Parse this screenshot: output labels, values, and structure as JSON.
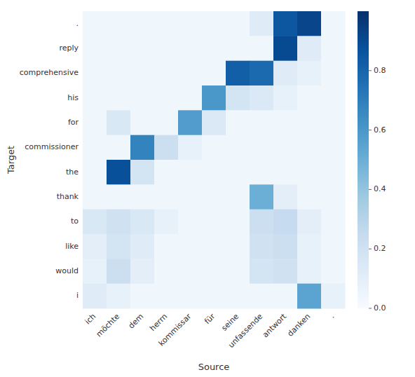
{
  "chart_data": {
    "type": "heatmap",
    "xlabel": "Source",
    "ylabel": "Target",
    "x_categories": [
      "ich",
      "möchte",
      "dem",
      "herrn",
      "kommissar",
      "für",
      "seine",
      "unfassende",
      "antwort",
      "danken",
      "."
    ],
    "y_categories": [
      ".",
      "reply",
      "comprehensive",
      "his",
      "for",
      "commissioner",
      "the",
      "thank",
      "to",
      "like",
      "would",
      "i"
    ],
    "values": [
      [
        0.04,
        0.04,
        0.04,
        0.04,
        0.04,
        0.04,
        0.04,
        0.12,
        0.85,
        0.92,
        0.04
      ],
      [
        0.04,
        0.04,
        0.04,
        0.04,
        0.04,
        0.04,
        0.04,
        0.04,
        0.9,
        0.12,
        0.04
      ],
      [
        0.04,
        0.04,
        0.04,
        0.04,
        0.04,
        0.04,
        0.82,
        0.78,
        0.12,
        0.08,
        0.04
      ],
      [
        0.04,
        0.04,
        0.04,
        0.04,
        0.04,
        0.6,
        0.18,
        0.14,
        0.08,
        0.04,
        0.04
      ],
      [
        0.04,
        0.15,
        0.04,
        0.04,
        0.58,
        0.14,
        0.04,
        0.04,
        0.04,
        0.04,
        0.04
      ],
      [
        0.04,
        0.04,
        0.68,
        0.22,
        0.08,
        0.04,
        0.04,
        0.04,
        0.04,
        0.04,
        0.04
      ],
      [
        0.04,
        0.88,
        0.18,
        0.04,
        0.04,
        0.04,
        0.04,
        0.04,
        0.04,
        0.04,
        0.04
      ],
      [
        0.04,
        0.04,
        0.04,
        0.04,
        0.04,
        0.04,
        0.04,
        0.5,
        0.1,
        0.04,
        0.04
      ],
      [
        0.15,
        0.2,
        0.15,
        0.08,
        0.04,
        0.04,
        0.04,
        0.22,
        0.25,
        0.1,
        0.04
      ],
      [
        0.1,
        0.18,
        0.12,
        0.04,
        0.04,
        0.04,
        0.04,
        0.2,
        0.22,
        0.08,
        0.04
      ],
      [
        0.08,
        0.22,
        0.1,
        0.04,
        0.04,
        0.04,
        0.04,
        0.18,
        0.2,
        0.08,
        0.04
      ],
      [
        0.12,
        0.08,
        0.04,
        0.04,
        0.04,
        0.04,
        0.04,
        0.04,
        0.04,
        0.55,
        0.08
      ]
    ],
    "color": "Blues",
    "colorbar_range": [
      0.0,
      1.0
    ],
    "colorbar_ticks": [
      {
        "value": 0.0,
        "label": "0.0"
      },
      0.2,
      0.4,
      0.6,
      0.8
    ]
  }
}
